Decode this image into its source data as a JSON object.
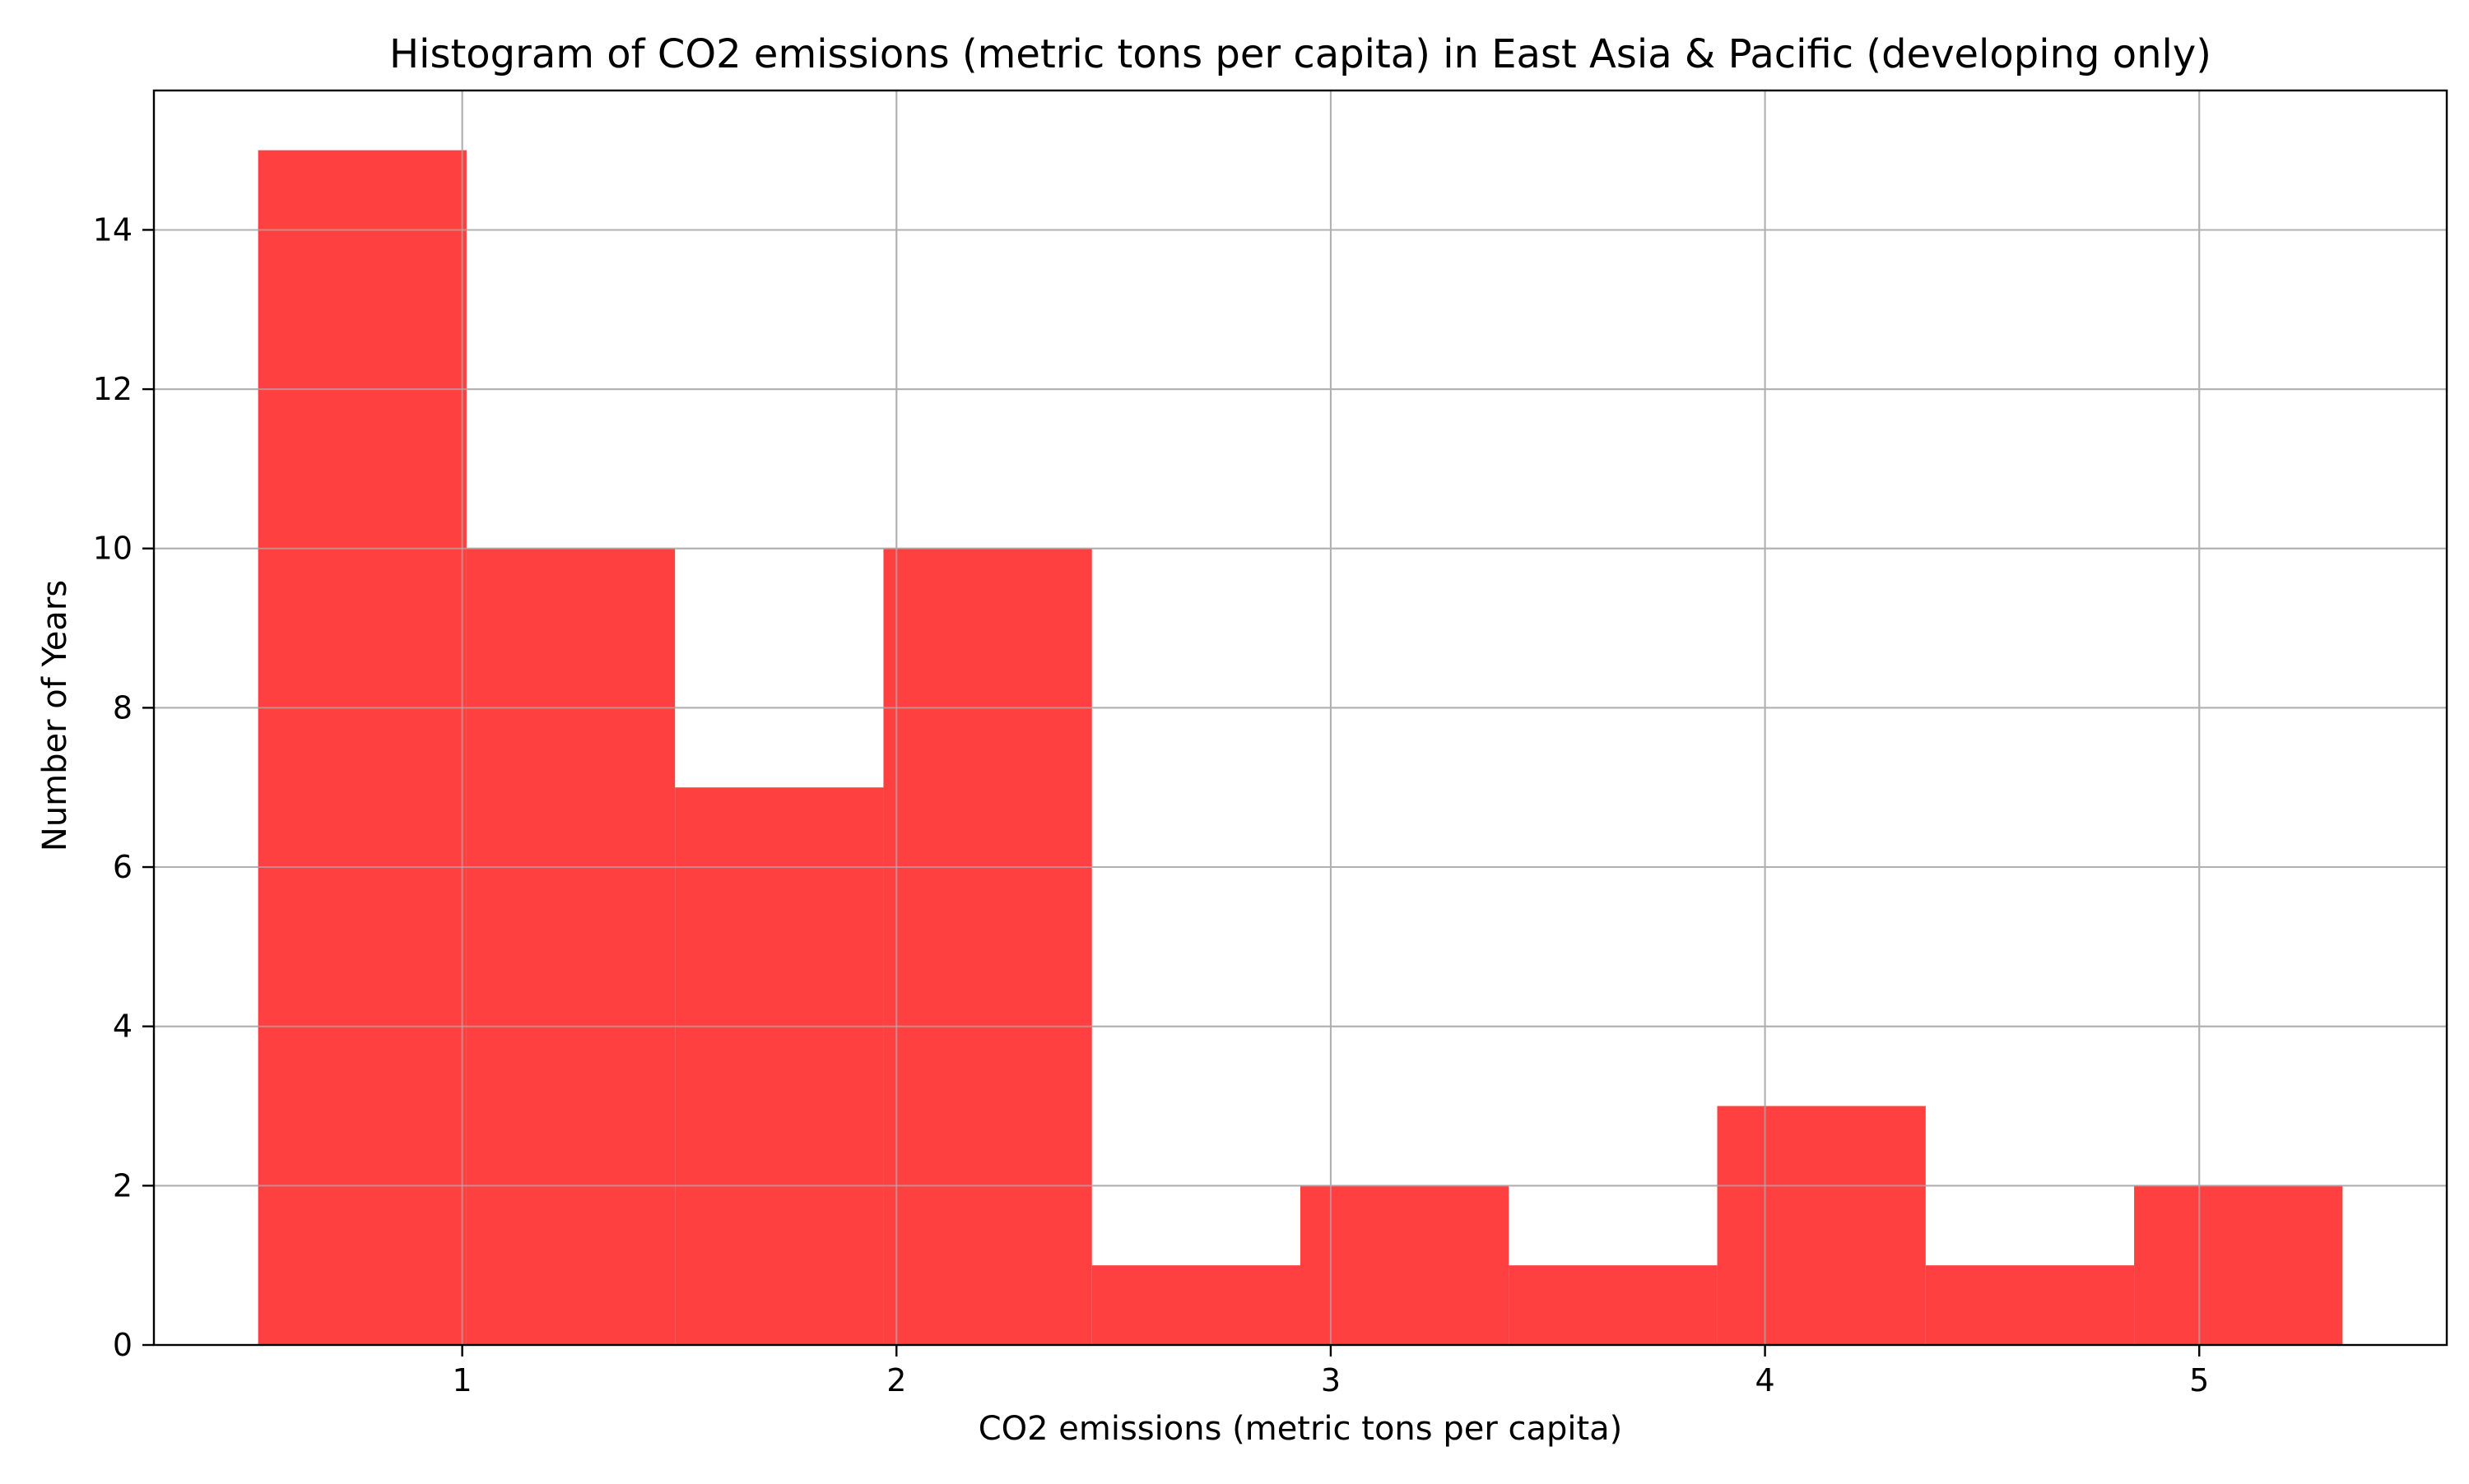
{
  "chart_data": {
    "type": "bar",
    "title": "Histogram of CO2 emissions (metric tons per capita) in East Asia & Pacific (developing only)",
    "xlabel": "CO2 emissions (metric tons per capita)",
    "ylabel": "Number of Years",
    "bins": [
      {
        "start": 0.53,
        "end": 1.01,
        "count": 15
      },
      {
        "start": 1.01,
        "end": 1.49,
        "count": 10
      },
      {
        "start": 1.49,
        "end": 1.97,
        "count": 7
      },
      {
        "start": 1.97,
        "end": 2.45,
        "count": 10
      },
      {
        "start": 2.45,
        "end": 2.93,
        "count": 1
      },
      {
        "start": 2.93,
        "end": 3.41,
        "count": 2
      },
      {
        "start": 3.41,
        "end": 3.89,
        "count": 1
      },
      {
        "start": 3.89,
        "end": 4.37,
        "count": 3
      },
      {
        "start": 4.37,
        "end": 4.85,
        "count": 1
      },
      {
        "start": 4.85,
        "end": 5.33,
        "count": 2
      }
    ],
    "xlim": [
      0.29,
      5.57
    ],
    "ylim": [
      0,
      15.75
    ],
    "xticks": [
      1,
      2,
      3,
      4,
      5
    ],
    "yticks": [
      0,
      2,
      4,
      6,
      8,
      10,
      12,
      14
    ],
    "grid": true,
    "colors": {
      "bar": "#ff4040",
      "grid": "#b0b0b0",
      "axis": "#000000"
    }
  }
}
